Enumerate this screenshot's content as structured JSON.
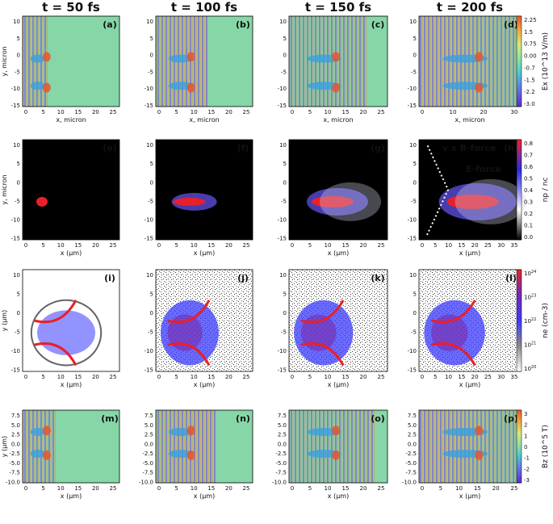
{
  "chart_data": {
    "type": "heatmap",
    "column_titles": [
      "t = 50 fs",
      "t = 100 fs",
      "t = 150 fs",
      "t = 200 fs"
    ],
    "rows": [
      {
        "quantity": "Ex",
        "panels": [
          "(a)",
          "(b)",
          "(c)",
          "(d)"
        ],
        "xlabel": "x, micron",
        "ylabel": "y, micron",
        "yticks": [
          "10",
          "5",
          "0",
          "-5",
          "-10",
          "-15"
        ],
        "xticks_short": [
          "0",
          "5",
          "10",
          "15",
          "20",
          "25"
        ],
        "xticks_long": [
          "0",
          "10",
          "20",
          "30"
        ],
        "colorbar": {
          "label": "Ex (10^13 V/m)",
          "ticks": [
            "2.25",
            "1.5",
            "0.75",
            "0.00",
            "-0.7",
            "-1.5",
            "-2.2",
            "-3.0"
          ],
          "range": [
            -3.0,
            2.25
          ],
          "colors": [
            "#5b2ad0",
            "#6a6ae8",
            "#49c4d8",
            "#8fe0a8",
            "#d9e87a",
            "#f2a93d",
            "#e8562b"
          ]
        }
      },
      {
        "quantity": "np/nc",
        "panels": [
          "(e)",
          "(f)",
          "(g)",
          "(h)"
        ],
        "xlabel": "x (µm)",
        "ylabel": "y, micron",
        "yticks": [
          "10",
          "5",
          "0",
          "-5",
          "-10",
          "-15"
        ],
        "xticks_short": [
          "0",
          "5",
          "10",
          "15",
          "20",
          "25"
        ],
        "xticks_long": [
          "0",
          "5",
          "10",
          "15",
          "20",
          "25",
          "30",
          "35"
        ],
        "annotations": [
          "v x B-force",
          "E-force"
        ],
        "colorbar": {
          "label": "np / nc",
          "ticks": [
            "0.8",
            "0.7",
            "0.6",
            "0.5",
            "0.4",
            "0.3",
            "0.2",
            "0.1",
            "0.0"
          ],
          "range": [
            0.0,
            0.8
          ],
          "colors": [
            "#000000",
            "#444444",
            "#9a9a9a",
            "#ffffff",
            "#b9b9f5",
            "#3c3ce8",
            "#8a2b8f",
            "#e8202a"
          ]
        }
      },
      {
        "quantity": "ne",
        "panels": [
          "(i)",
          "(j)",
          "(k)",
          "(l)"
        ],
        "xlabel": "x (µm)",
        "ylabel": "y (µm)",
        "yticks": [
          "10",
          "5",
          "0",
          "-5",
          "-10",
          "-15"
        ],
        "xticks_short": [
          "0",
          "5",
          "10",
          "15",
          "20",
          "25"
        ],
        "xticks_long": [
          "0",
          "5",
          "10",
          "15",
          "20",
          "25",
          "30",
          "35"
        ],
        "colorbar": {
          "label": "ne (cm-3)",
          "ticks": [
            "10^24",
            "10^23",
            "10^22",
            "10^21",
            "10^20"
          ],
          "range": [
            1e+20,
            1e+24
          ],
          "colors": [
            "#ffffff",
            "#8a8a8a",
            "#3a3aff",
            "#7a2aa8",
            "#e8202a"
          ]
        }
      },
      {
        "quantity": "Bz",
        "panels": [
          "(m)",
          "(n)",
          "(o)",
          "(p)"
        ],
        "xlabel": "x (µm)",
        "ylabel": "y (µm)",
        "yticks": [
          "7.5",
          "5.0",
          "2.5",
          "0.0",
          "-2.5",
          "-5.0",
          "-7.5",
          "-10.0"
        ],
        "xticks_short": [
          "0",
          "5",
          "10",
          "15",
          "20",
          "25"
        ],
        "colorbar": {
          "label": "Bz (10^5 T)",
          "ticks": [
            "3",
            "2",
            "1",
            "0",
            "-1",
            "-2",
            "-3"
          ],
          "range": [
            -3,
            3
          ],
          "colors": [
            "#5b2ad0",
            "#6a6ae8",
            "#49c4d8",
            "#8fe0a8",
            "#d9e87a",
            "#f2a93d",
            "#e8562b"
          ]
        }
      }
    ]
  }
}
